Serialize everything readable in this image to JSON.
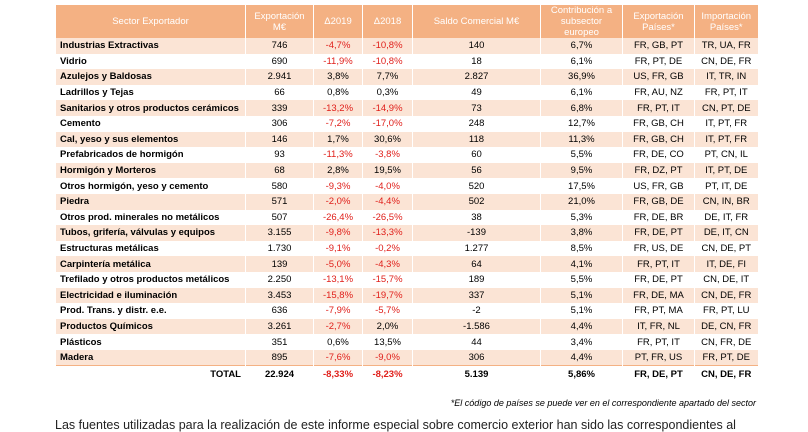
{
  "table": {
    "headers": [
      "Sector Exportador",
      "Exportación M€",
      "Δ2019",
      "Δ2018",
      "Saldo Comercial M€",
      "Contribución a subsector europeo",
      "Exportación Países*",
      "Importación Países*"
    ],
    "rows": [
      [
        "Industrias Extractivas",
        "746",
        "-4,7%",
        "-10,8%",
        "140",
        "6,7%",
        "FR, GB, PT",
        "TR, UA, FR"
      ],
      [
        "Vidrio",
        "690",
        "-11,9%",
        "-10,8%",
        "18",
        "6,1%",
        "FR, PT, DE",
        "CN, DE, FR"
      ],
      [
        "Azulejos y Baldosas",
        "2.941",
        "3,8%",
        "7,7%",
        "2.827",
        "36,9%",
        "US, FR, GB",
        "IT, TR, IN"
      ],
      [
        "Ladrillos y Tejas",
        "66",
        "0,8%",
        "0,3%",
        "49",
        "6,1%",
        "FR, AU, NZ",
        "FR, PT, IT"
      ],
      [
        "Sanitarios y otros productos cerámicos",
        "339",
        "-13,2%",
        "-14,9%",
        "73",
        "6,8%",
        "FR, PT, IT",
        "CN, PT, DE"
      ],
      [
        "Cemento",
        "306",
        "-7,2%",
        "-17,0%",
        "248",
        "12,7%",
        "FR, GB, CH",
        "IT, PT, FR"
      ],
      [
        "Cal, yeso y sus elementos",
        "146",
        "1,7%",
        "30,6%",
        "118",
        "11,3%",
        "FR, GB, CH",
        "IT, PT, FR"
      ],
      [
        "Prefabricados de hormigón",
        "93",
        "-11,3%",
        "-3,8%",
        "60",
        "5,5%",
        "FR, DE, CO",
        "PT, CN, IL"
      ],
      [
        "Hormigón y Morteros",
        "68",
        "2,8%",
        "19,5%",
        "56",
        "9,5%",
        "FR, DZ, PT",
        "IT, PT, DE"
      ],
      [
        "Otros hormigón, yeso y cemento",
        "580",
        "-9,3%",
        "-4,0%",
        "520",
        "17,5%",
        "US, FR, GB",
        "PT, IT, DE"
      ],
      [
        "Piedra",
        "571",
        "-2,0%",
        "-4,4%",
        "502",
        "21,0%",
        "FR, GB, DE",
        "CN, IN, BR"
      ],
      [
        "Otros prod. minerales no metálicos",
        "507",
        "-26,4%",
        "-26,5%",
        "38",
        "5,3%",
        "FR, DE, BR",
        "DE, IT, FR"
      ],
      [
        "Tubos, grifería, válvulas y equipos",
        "3.155",
        "-9,8%",
        "-13,3%",
        "-139",
        "3,8%",
        "FR, DE, PT",
        "DE, IT, CN"
      ],
      [
        "Estructuras metálicas",
        "1.730",
        "-9,1%",
        "-0,2%",
        "1.277",
        "8,5%",
        "FR, US, DE",
        "CN, DE, PT"
      ],
      [
        "Carpintería metálica",
        "139",
        "-5,0%",
        "-4,3%",
        "64",
        "4,1%",
        "FR, PT, IT",
        "IT, DE, FI"
      ],
      [
        "Trefilado y otros productos metálicos",
        "2.250",
        "-13,1%",
        "-15,7%",
        "189",
        "5,5%",
        "FR, DE, PT",
        "CN, DE, IT"
      ],
      [
        "Electricidad e iluminación",
        "3.453",
        "-15,8%",
        "-19,7%",
        "337",
        "5,1%",
        "FR, DE, MA",
        "CN, DE, FR"
      ],
      [
        "Prod. Trans. y distr. e.e.",
        "636",
        "-7,9%",
        "-5,7%",
        "-2",
        "5,1%",
        "FR, PT, MA",
        "FR, PT, LU"
      ],
      [
        "Productos Químicos",
        "3.261",
        "-2,7%",
        "2,0%",
        "-1.586",
        "4,4%",
        "IT, FR, NL",
        "DE, CN, FR"
      ],
      [
        "Plásticos",
        "351",
        "0,6%",
        "13,5%",
        "44",
        "3,4%",
        "FR, PT, IT",
        "CN, FR, DE"
      ],
      [
        "Madera",
        "895",
        "-7,6%",
        "-9,0%",
        "306",
        "4,4%",
        "PT, FR, US",
        "FR, PT, DE"
      ]
    ],
    "total": [
      "TOTAL",
      "22.924",
      "-8,33%",
      "-8,23%",
      "5.139",
      "5,86%",
      "FR, DE, PT",
      "CN, DE, FR"
    ]
  },
  "footnote": "*El código de países se puede ver en el correspondiente apartado del sector",
  "body_text": "Las fuentes utilizadas para la realización de este informe especial sobre comercio exterior han sido las correspondientes al"
}
